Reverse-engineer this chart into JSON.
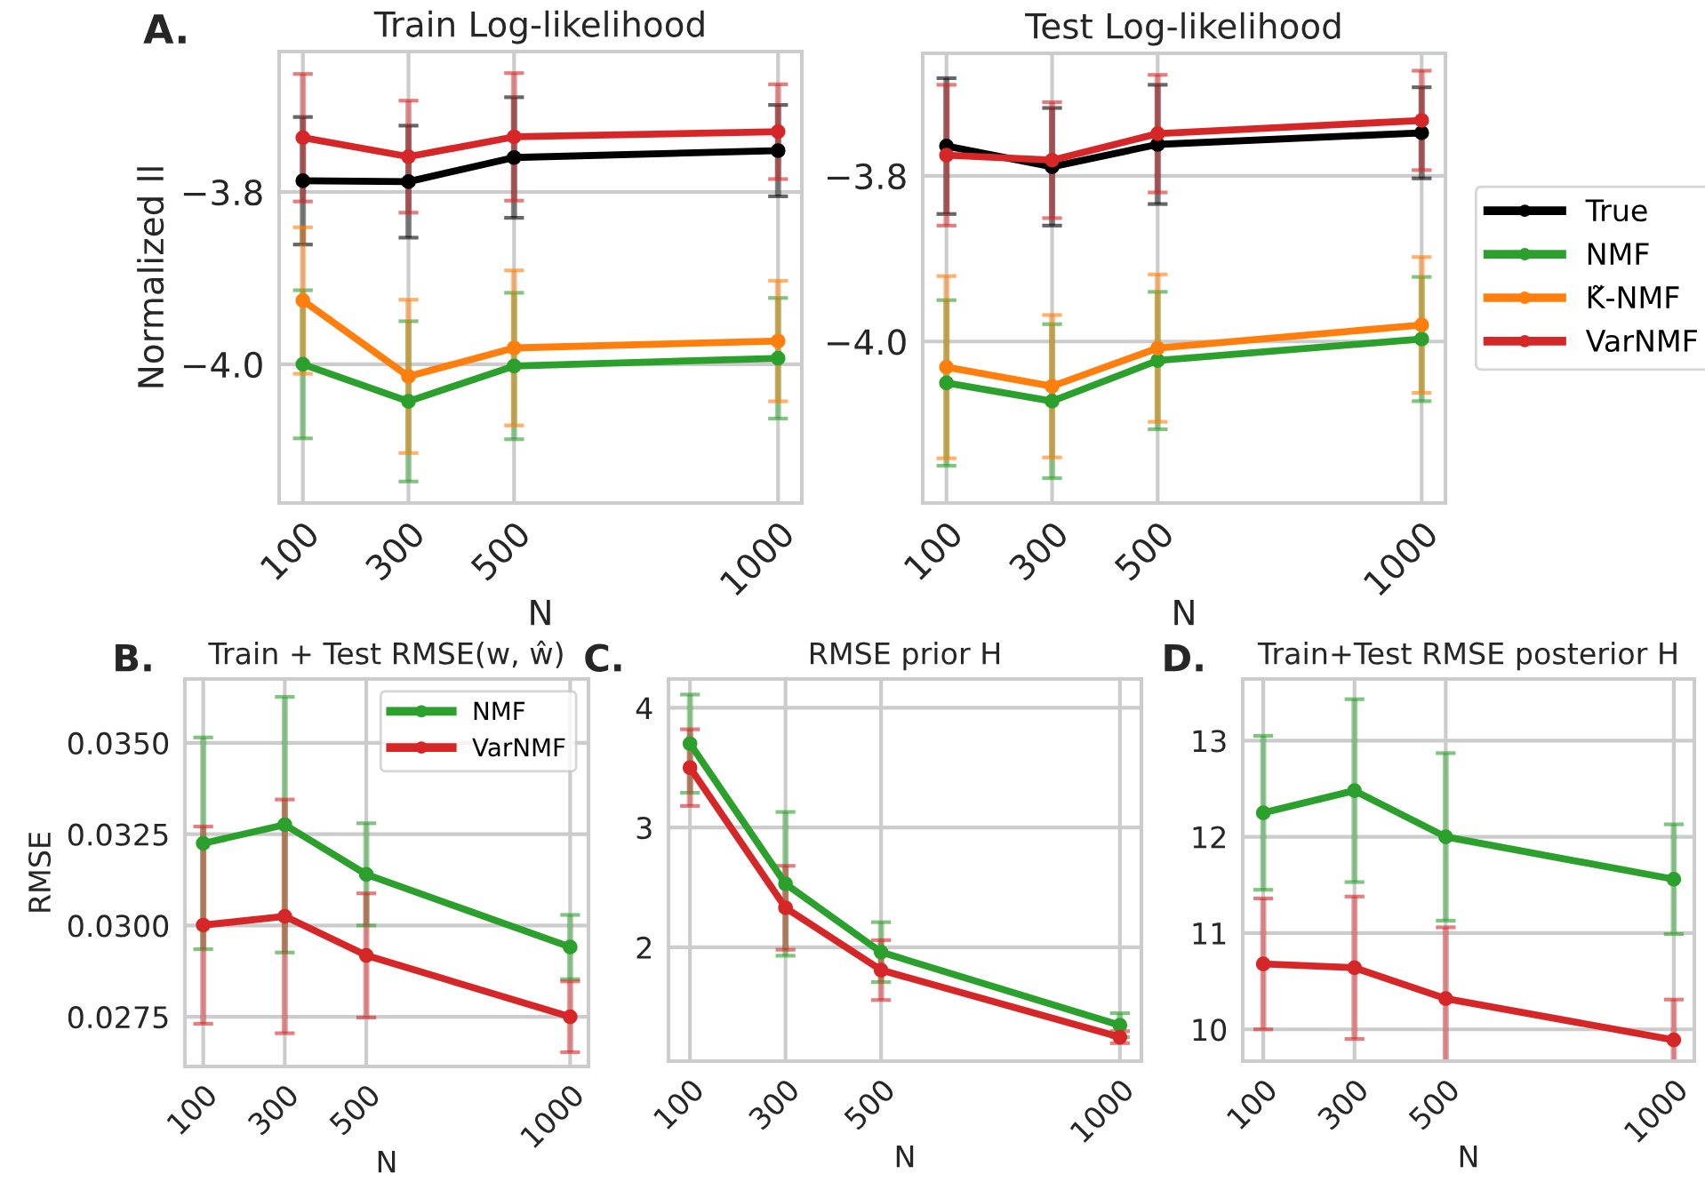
{
  "chart_data": [
    {
      "type": "line",
      "title": "Train Log-likelihood",
      "annotations": [
        "A."
      ],
      "xlabel": "N",
      "ylabel": "Normalized ll",
      "x": [
        100,
        300,
        500,
        1000
      ],
      "xlim": [
        55,
        1045
      ],
      "xticks": [
        100,
        300,
        500,
        1000
      ],
      "ylim": [
        -4.161,
        -3.637
      ],
      "yticks": [
        {
          "value": -4.0,
          "label": "−4.0"
        },
        {
          "value": -3.8,
          "label": "−3.8"
        }
      ],
      "grid": true,
      "legend": false,
      "marker": "circle",
      "series": [
        {
          "color": "#000000",
          "values": [
            -3.787,
            -3.788,
            -3.76,
            -3.752
          ],
          "errors": [
            0.074,
            0.065,
            0.07,
            0.053
          ]
        },
        {
          "color": "#2ca02c",
          "values": [
            -4.0,
            -4.043,
            -4.002,
            -3.993
          ],
          "errors": [
            0.086,
            0.093,
            0.085,
            0.07
          ]
        },
        {
          "color": "#ff7f0e",
          "values": [
            -3.926,
            -4.014,
            -3.981,
            -3.973
          ],
          "errors": [
            0.085,
            0.089,
            0.09,
            0.07
          ]
        },
        {
          "color": "#d62728",
          "values": [
            -3.737,
            -3.759,
            -3.736,
            -3.73
          ],
          "errors": [
            0.074,
            0.065,
            0.074,
            0.055
          ]
        }
      ]
    },
    {
      "type": "line",
      "title": "Test Log-likelihood",
      "xlabel": "N",
      "x": [
        100,
        300,
        500,
        1000
      ],
      "xlim": [
        55,
        1045
      ],
      "xticks": [
        100,
        300,
        500,
        1000
      ],
      "ylim": [
        -4.195,
        -3.652
      ],
      "yticks": [
        {
          "value": -4.0,
          "label": "−4.0"
        },
        {
          "value": -3.8,
          "label": "−3.8"
        }
      ],
      "grid": true,
      "legend": "right",
      "marker": "circle",
      "series": [
        {
          "name": "True",
          "color": "#000000",
          "values": [
            -3.764,
            -3.789,
            -3.762,
            -3.748
          ],
          "errors": [
            0.082,
            0.071,
            0.072,
            0.055
          ]
        },
        {
          "name": "NMF",
          "color": "#2ca02c",
          "values": [
            -4.05,
            -4.072,
            -4.023,
            -3.997
          ],
          "errors": [
            0.1,
            0.093,
            0.083,
            0.075
          ]
        },
        {
          "name": "K̃-NMF",
          "color": "#ff7f0e",
          "values": [
            -4.031,
            -4.054,
            -4.008,
            -3.98
          ],
          "errors": [
            0.11,
            0.086,
            0.089,
            0.082
          ]
        },
        {
          "name": "VarNMF",
          "color": "#d62728",
          "values": [
            -3.775,
            -3.781,
            -3.749,
            -3.733
          ],
          "errors": [
            0.085,
            0.07,
            0.071,
            0.06
          ]
        }
      ]
    },
    {
      "type": "line",
      "title": "Train + Test RMSE(w, ŵ)",
      "annotations": [
        "B."
      ],
      "xlabel": "N",
      "ylabel": "RMSE",
      "x": [
        100,
        300,
        500,
        1000
      ],
      "xlim": [
        55,
        1045
      ],
      "xticks": [
        100,
        300,
        500,
        1000
      ],
      "ylim": [
        0.02614,
        0.03675
      ],
      "yticks": [
        {
          "value": 0.0275,
          "label": "0.0275"
        },
        {
          "value": 0.03,
          "label": "0.0300"
        },
        {
          "value": 0.0325,
          "label": "0.0325"
        },
        {
          "value": 0.035,
          "label": "0.0350"
        }
      ],
      "grid": true,
      "legend": "top right",
      "marker": "circle",
      "series": [
        {
          "name": "NMF",
          "color": "#2ca02c",
          "values": [
            0.03225,
            0.03276,
            0.0314,
            0.02941
          ],
          "errors": [
            0.0029,
            0.0035,
            0.0014,
            0.00088
          ]
        },
        {
          "name": "VarNMF",
          "color": "#d62728",
          "values": [
            0.03001,
            0.03025,
            0.02918,
            0.0275
          ],
          "errors": [
            0.0027,
            0.0032,
            0.0017,
            0.00097
          ]
        }
      ]
    },
    {
      "type": "line",
      "title": "RMSE prior H",
      "annotations": [
        "C."
      ],
      "xlabel": "N",
      "x": [
        100,
        300,
        500,
        1000
      ],
      "xlim": [
        55,
        1045
      ],
      "xticks": [
        100,
        300,
        500,
        1000
      ],
      "ylim": [
        1.05,
        4.24
      ],
      "yticks": [
        2,
        3,
        4
      ],
      "grid": true,
      "legend": false,
      "marker": "circle",
      "series": [
        {
          "color": "#2ca02c",
          "values": [
            3.7,
            2.53,
            1.96,
            1.35
          ],
          "errors": [
            0.41,
            0.6,
            0.25,
            0.1
          ]
        },
        {
          "color": "#d62728",
          "values": [
            3.5,
            2.33,
            1.81,
            1.25
          ],
          "errors": [
            0.32,
            0.35,
            0.25,
            0.05
          ]
        }
      ]
    },
    {
      "type": "line",
      "title": "Train+Test RMSE posterior H",
      "annotations": [
        "D."
      ],
      "xlabel": "N",
      "x": [
        100,
        300,
        500,
        1000
      ],
      "xlim": [
        55,
        1045
      ],
      "xticks": [
        100,
        300,
        500,
        1000
      ],
      "ylim": [
        9.67,
        13.64
      ],
      "yticks": [
        10,
        11,
        12,
        13
      ],
      "grid": true,
      "legend": false,
      "marker": "circle",
      "series": [
        {
          "color": "#2ca02c",
          "values": [
            12.25,
            12.48,
            12.0,
            11.56
          ],
          "errors": [
            0.8,
            0.95,
            0.87,
            0.57
          ]
        },
        {
          "color": "#d62728",
          "values": [
            10.68,
            10.64,
            10.32,
            9.89
          ],
          "errors": [
            0.68,
            0.74,
            0.74,
            0.42
          ]
        }
      ]
    }
  ]
}
